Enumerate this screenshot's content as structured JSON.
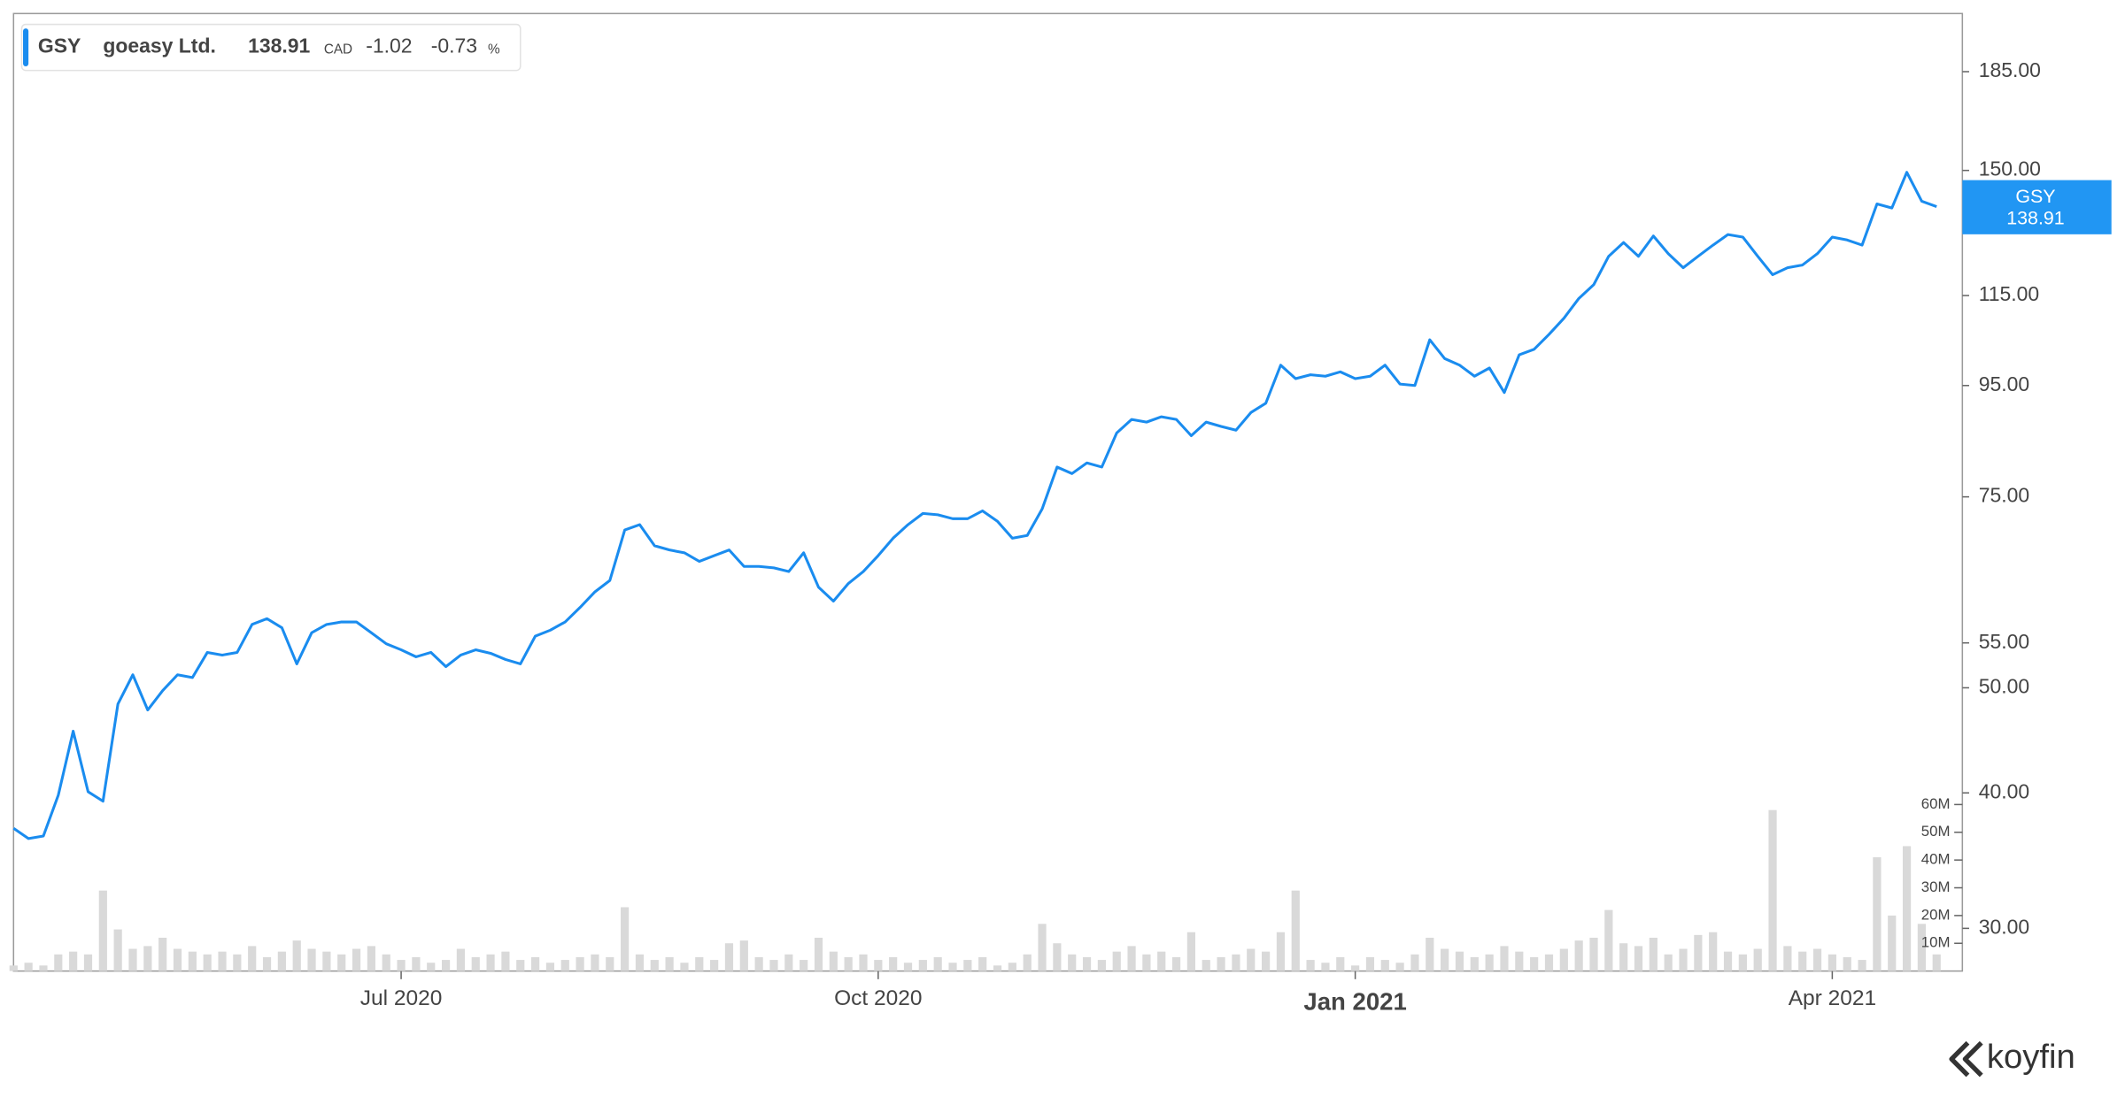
{
  "chart_data": {
    "type": "line",
    "log_scale": true,
    "legend": {
      "name": "goeasy Ltd.",
      "price": "138.91",
      "currency": "CAD",
      "change": "-1.02",
      "change_pct": "-0.73",
      "pct_unit": "%"
    },
    "brand": "koyfin",
    "categories": [
      null,
      null,
      null,
      null,
      null,
      null,
      null,
      null,
      null,
      null,
      null,
      null,
      null,
      null,
      null,
      null,
      null,
      null,
      null,
      null,
      null,
      null,
      null,
      null,
      null,
      null,
      "Jul 2020",
      null,
      null,
      null,
      null,
      null,
      null,
      null,
      null,
      null,
      null,
      null,
      null,
      null,
      null,
      null,
      null,
      null,
      null,
      null,
      null,
      null,
      null,
      null,
      null,
      null,
      null,
      null,
      null,
      null,
      null,
      null,
      "Oct 2020",
      null,
      null,
      null,
      null,
      null,
      null,
      null,
      null,
      null,
      null,
      null,
      null,
      null,
      null,
      null,
      null,
      null,
      null,
      null,
      null,
      null,
      null,
      null,
      null,
      null,
      null,
      null,
      null,
      null,
      null,
      null,
      "Jan 2021",
      null,
      null,
      null,
      null,
      null,
      null,
      null,
      null,
      null,
      null,
      null,
      null,
      null,
      null,
      null,
      null,
      null,
      null,
      null,
      null,
      null,
      null,
      null,
      null,
      null,
      null,
      null,
      null,
      null,
      null,
      null,
      "Apr 2021",
      null,
      null,
      null,
      null,
      null,
      null,
      null
    ],
    "series": [
      {
        "name": "GSY",
        "color": "#1a8cef",
        "values": [
          37.1,
          36.3,
          36.5,
          39.8,
          45.6,
          40.1,
          39.3,
          48.3,
          51.4,
          47.7,
          49.7,
          51.4,
          51.1,
          53.9,
          53.6,
          53.9,
          57.2,
          57.9,
          56.8,
          52.6,
          56.2,
          57.2,
          57.5,
          57.5,
          56.2,
          54.9,
          54.2,
          53.4,
          53.9,
          52.3,
          53.6,
          54.2,
          53.8,
          53.1,
          52.6,
          55.8,
          56.5,
          57.5,
          59.3,
          61.3,
          62.8,
          69.9,
          70.7,
          67.6,
          67.0,
          66.6,
          65.4,
          66.2,
          67.0,
          64.7,
          64.7,
          64.5,
          64.0,
          66.6,
          61.9,
          60.1,
          62.4,
          64.0,
          66.2,
          68.7,
          70.7,
          72.4,
          72.2,
          71.6,
          71.6,
          72.8,
          71.2,
          68.7,
          69.1,
          73.1,
          79.9,
          78.8,
          80.6,
          79.9,
          85.9,
          88.4,
          87.9,
          88.9,
          88.4,
          85.4,
          87.9,
          87.1,
          86.4,
          89.7,
          91.5,
          99.2,
          96.4,
          97.2,
          96.9,
          97.8,
          96.4,
          96.9,
          99.2,
          95.3,
          95.0,
          104.7,
          100.6,
          99.2,
          96.9,
          98.6,
          93.6,
          101.4,
          102.6,
          105.9,
          109.6,
          114.3,
          117.7,
          125.0,
          128.7,
          125.0,
          130.5,
          125.7,
          122.0,
          125.0,
          128.0,
          130.9,
          130.2,
          125.0,
          120.2,
          122.0,
          122.7,
          125.7,
          130.2,
          129.4,
          128.0,
          139.7,
          138.5,
          149.4,
          140.5,
          138.91
        ]
      }
    ],
    "volume": {
      "color": "#d9d9d9",
      "axis": "y2",
      "values": [
        2,
        3,
        2,
        6,
        7,
        6,
        29,
        15,
        8,
        9,
        12,
        8,
        7,
        6,
        7,
        6,
        9,
        5,
        7,
        11,
        8,
        7,
        6,
        8,
        9,
        6,
        4,
        5,
        3,
        4,
        8,
        5,
        6,
        7,
        4,
        5,
        3,
        4,
        5,
        6,
        5,
        23,
        6,
        4,
        5,
        3,
        5,
        4,
        10,
        11,
        5,
        4,
        6,
        4,
        12,
        7,
        5,
        6,
        4,
        5,
        3,
        4,
        5,
        3,
        4,
        5,
        2,
        3,
        6,
        17,
        10,
        6,
        5,
        4,
        7,
        9,
        6,
        7,
        5,
        14,
        4,
        5,
        6,
        8,
        7,
        14,
        29,
        4,
        3,
        5,
        2,
        5,
        4,
        3,
        6,
        12,
        8,
        7,
        5,
        6,
        9,
        7,
        5,
        6,
        8,
        11,
        12,
        22,
        10,
        9,
        12,
        6,
        8,
        13,
        14,
        7,
        6,
        8,
        58,
        9,
        7,
        8,
        6,
        5,
        4,
        41,
        20,
        45,
        17,
        6
      ]
    },
    "ylim": [
      27.4,
      209.3
    ],
    "yticks": [
      {
        "value": 30,
        "label": "30.00"
      },
      {
        "value": 40,
        "label": "40.00"
      },
      {
        "value": 50,
        "label": "50.00"
      },
      {
        "value": 55,
        "label": "55.00"
      },
      {
        "value": 75,
        "label": "75.00"
      },
      {
        "value": 95,
        "label": "95.00"
      },
      {
        "value": 115,
        "label": "115.00"
      },
      {
        "value": 150,
        "label": "150.00"
      },
      {
        "value": 185,
        "label": "185.00"
      }
    ],
    "y2lim": [
      0,
      345
    ],
    "y2ticks": [
      {
        "value": 10,
        "label": "10M"
      },
      {
        "value": 20,
        "label": "20M"
      },
      {
        "value": 30,
        "label": "30M"
      },
      {
        "value": 40,
        "label": "40M"
      },
      {
        "value": 50,
        "label": "50M"
      },
      {
        "value": 60,
        "label": "60M"
      }
    ]
  }
}
